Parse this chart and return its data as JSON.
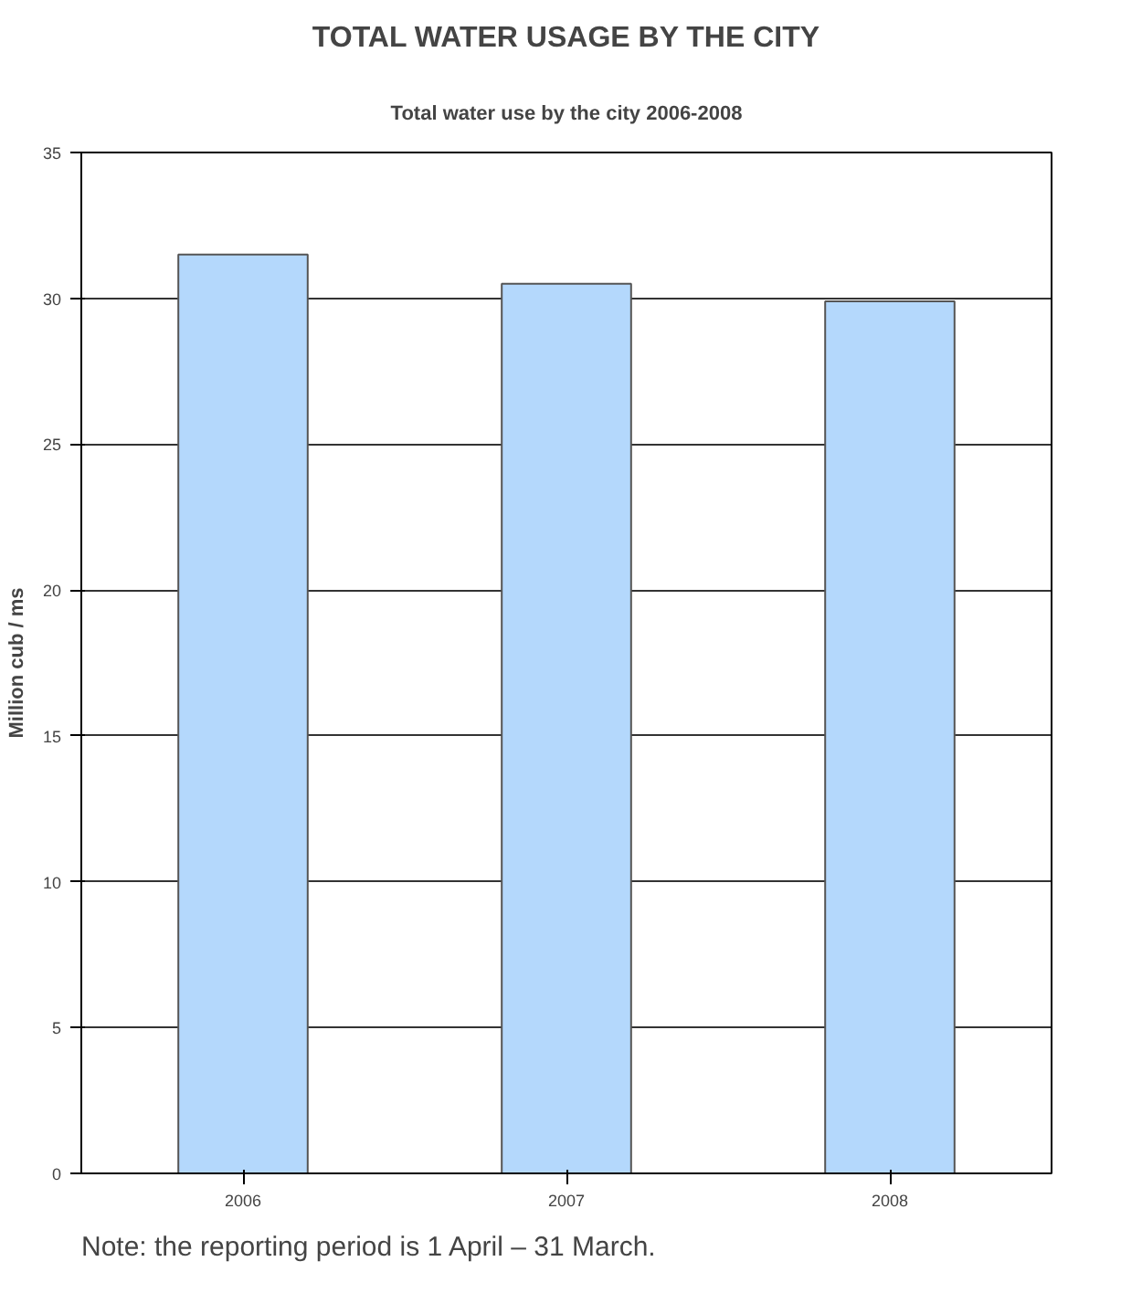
{
  "chart_data": {
    "type": "bar",
    "title": "TOTAL WATER USAGE BY THE CITY",
    "subtitle": "Total water use by the city 2006-2008",
    "ylabel": "Million cub / ms",
    "categories": [
      "2006",
      "2007",
      "2008"
    ],
    "values": [
      31.5,
      30.5,
      29.9
    ],
    "color": "#b4d8fc",
    "ylim": [
      0,
      35
    ],
    "yticks": [
      0,
      5,
      10,
      15,
      20,
      25,
      30,
      35
    ],
    "grid": "y",
    "annotations": [
      "Note: the reporting period is 1 April – 31 March."
    ]
  }
}
